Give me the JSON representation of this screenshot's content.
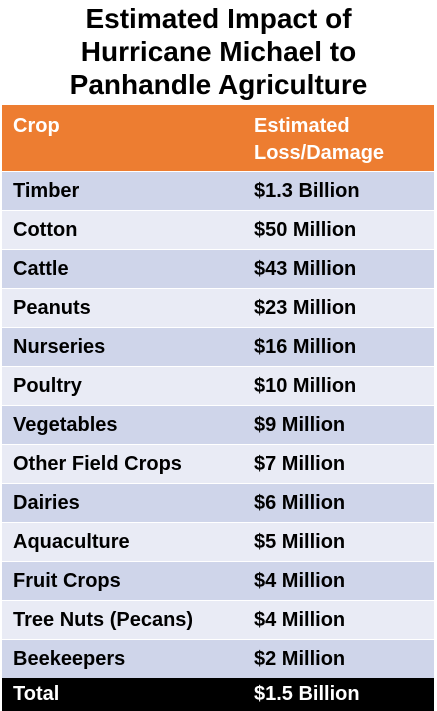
{
  "title": {
    "line1": "Estimated Impact of",
    "line2": "Hurricane Michael to",
    "line3": "Panhandle Agriculture"
  },
  "table": {
    "headers": {
      "crop": "Crop",
      "loss_line1": "Estimated",
      "loss_line2": "Loss/Damage"
    },
    "rows": [
      {
        "crop": "Timber",
        "loss": "$1.3 Billion"
      },
      {
        "crop": "Cotton",
        "loss": "$50 Million"
      },
      {
        "crop": "Cattle",
        "loss": "$43 Million"
      },
      {
        "crop": "Peanuts",
        "loss": "$23 Million"
      },
      {
        "crop": "Nurseries",
        "loss": "$16 Million"
      },
      {
        "crop": "Poultry",
        "loss": "$10 Million"
      },
      {
        "crop": "Vegetables",
        "loss": "$9 Million"
      },
      {
        "crop": "Other Field Crops",
        "loss": "$7 Million"
      },
      {
        "crop": "Dairies",
        "loss": "$6 Million"
      },
      {
        "crop": "Aquaculture",
        "loss": "$5 Million"
      },
      {
        "crop": "Fruit Crops",
        "loss": "$4 Million"
      },
      {
        "crop": "Tree Nuts (Pecans)",
        "loss": "$4 Million"
      },
      {
        "crop": "Beekeepers",
        "loss": "$2 Million"
      }
    ],
    "total": {
      "label": "Total",
      "value": "$1.5 Billion"
    }
  },
  "colors": {
    "header_bg": "#ED7D31",
    "row_dark": "#CFD5EA",
    "row_light": "#E9EBF5",
    "total_bg": "#000000"
  }
}
